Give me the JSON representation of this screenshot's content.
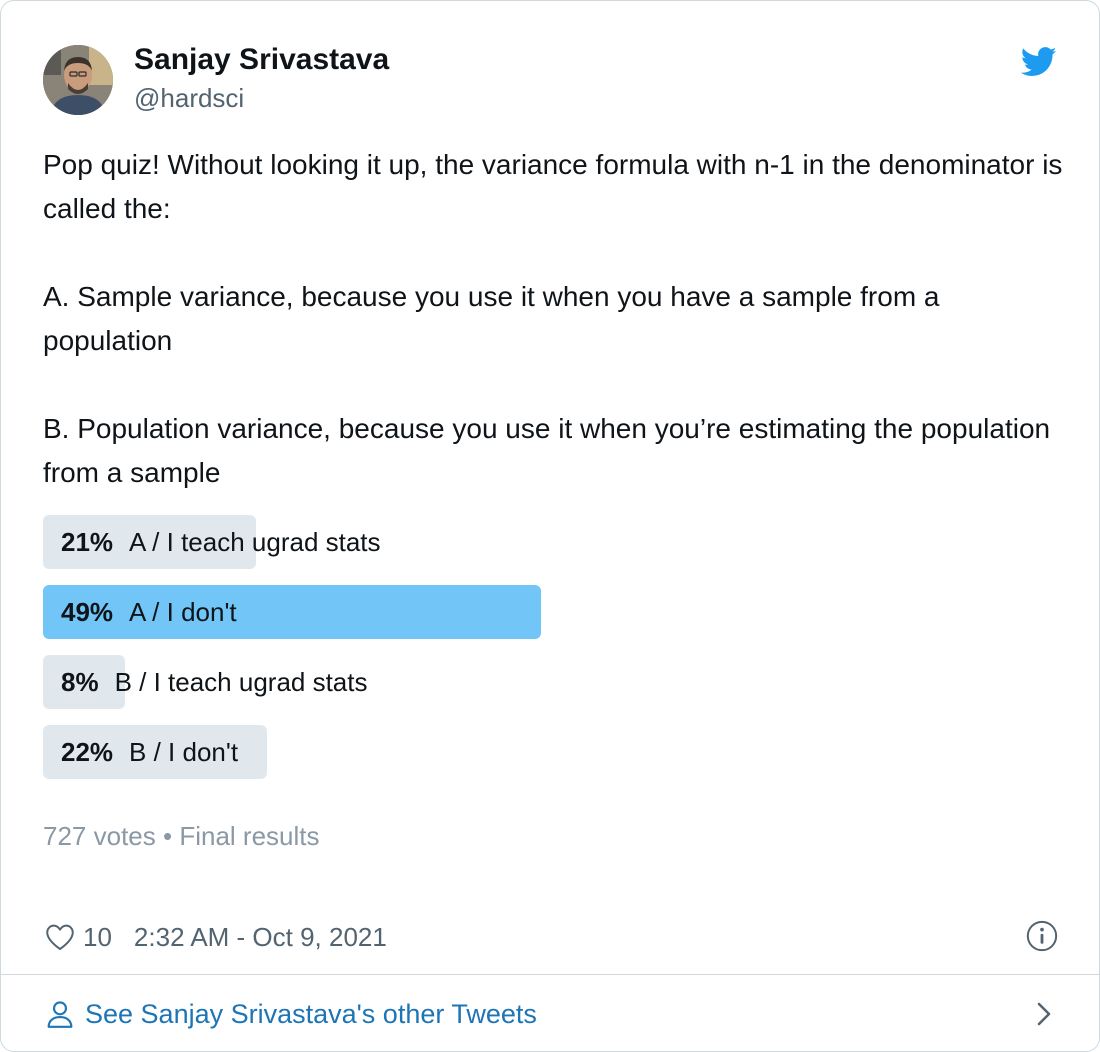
{
  "author": {
    "name": "Sanjay Srivastava",
    "handle": "@hardsci"
  },
  "tweet": {
    "paragraphs": [
      "Pop quiz! Without looking it up, the variance formula with n-1 in the denominator is called the:",
      "A. Sample variance, because you use it when you have a sample from a population",
      "B. Population variance, because you use it when you’re estimating the population from a sample"
    ]
  },
  "poll": {
    "options": [
      {
        "percent": 21,
        "percent_label": "21%",
        "label": "A / I teach ugrad stats",
        "winner": false
      },
      {
        "percent": 49,
        "percent_label": "49%",
        "label": "A / I don't",
        "winner": true
      },
      {
        "percent": 8,
        "percent_label": "8%",
        "label": "B / I teach ugrad stats",
        "winner": false
      },
      {
        "percent": 22,
        "percent_label": "22%",
        "label": "B / I don't",
        "winner": false
      }
    ],
    "votes": "727 votes",
    "separator": "•",
    "status": "Final results"
  },
  "footer": {
    "like_count": "10",
    "timestamp": "2:32 AM - Oct 9, 2021"
  },
  "see_more": {
    "label": "See Sanjay Srivastava's other Tweets"
  },
  "colors": {
    "bar_default": "#e1e8ed",
    "bar_winner": "#71c5f7",
    "link": "#1d75b6",
    "twitter_blue": "#1d9bf0",
    "muted": "#536471"
  },
  "icons": {
    "brand": "twitter-bird-icon",
    "like": "heart-icon",
    "info": "info-icon",
    "profile": "person-icon",
    "chevron": "chevron-right-icon"
  }
}
